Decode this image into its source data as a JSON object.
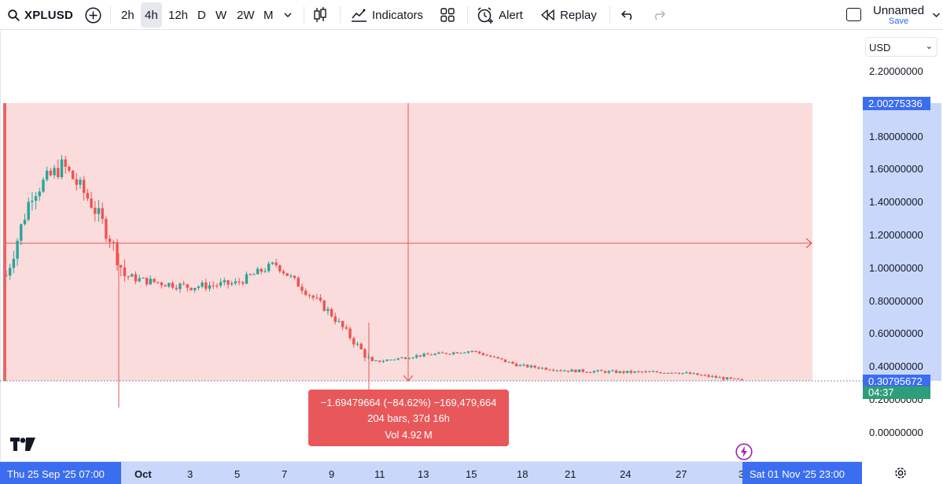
{
  "toolbar": {
    "symbol": "XPLUSD",
    "intervals": [
      "2h",
      "4h",
      "12h",
      "D",
      "W",
      "2W",
      "M"
    ],
    "active_interval": "4h",
    "indicators_label": "Indicators",
    "alert_label": "Alert",
    "replay_label": "Replay",
    "layout_name": "Unnamed",
    "save_label": "Save"
  },
  "price_scale": {
    "currency": "USD",
    "ticks": [
      "2.20000000",
      "1.80000000",
      "1.60000000",
      "1.40000000",
      "1.20000000",
      "1.00000000",
      "0.80000000",
      "0.60000000",
      "0.40000000",
      "0.20000000",
      "0.00000000"
    ],
    "measure_high_badge": "2.00275336",
    "last_price_badge": "0.30795672",
    "countdown_badge": "04:37"
  },
  "time_axis": {
    "start_badge": "Thu 25 Sep '25   07:00",
    "labels": [
      "Oct",
      "3",
      "5",
      "7",
      "9",
      "11",
      "13",
      "15",
      "18",
      "21",
      "24",
      "27",
      "3"
    ],
    "end_badge": "Sat 01 Nov '25   23:00"
  },
  "measure": {
    "line1": "−1.69479664 (−84.62%) −169,479,664",
    "line2": "204 bars, 37d 16h",
    "line3": "Vol 4.92 M"
  },
  "colors": {
    "up": "#26a69a",
    "down": "#ef5350",
    "measure_fill": "#fadcdc",
    "measure_line": "#e8585a",
    "accent": "#2962ff"
  },
  "chart_data": {
    "type": "candlestick",
    "ylim": [
      0,
      2.3
    ],
    "series": [
      {
        "date": "25 Sep",
        "price": 0.95
      },
      {
        "date": "26 Sep",
        "price": 1.45
      },
      {
        "date": "27 Sep",
        "price": 1.62
      },
      {
        "date": "28 Sep",
        "price": 1.4
      },
      {
        "date": "29 Sep",
        "price": 1.18
      },
      {
        "date": "30 Sep",
        "price": 0.95
      },
      {
        "date": "1 Oct",
        "price": 0.92
      },
      {
        "date": "3 Oct",
        "price": 0.88
      },
      {
        "date": "5 Oct",
        "price": 0.9
      },
      {
        "date": "7 Oct",
        "price": 1.02
      },
      {
        "date": "9 Oct",
        "price": 0.72
      },
      {
        "date": "11 Oct",
        "price": 0.42
      },
      {
        "date": "13 Oct",
        "price": 0.46
      },
      {
        "date": "15 Oct",
        "price": 0.49
      },
      {
        "date": "18 Oct",
        "price": 0.4
      },
      {
        "date": "21 Oct",
        "price": 0.37
      },
      {
        "date": "24 Oct",
        "price": 0.36
      },
      {
        "date": "27 Oct",
        "price": 0.36
      },
      {
        "date": "1 Nov",
        "price": 0.31
      }
    ]
  }
}
